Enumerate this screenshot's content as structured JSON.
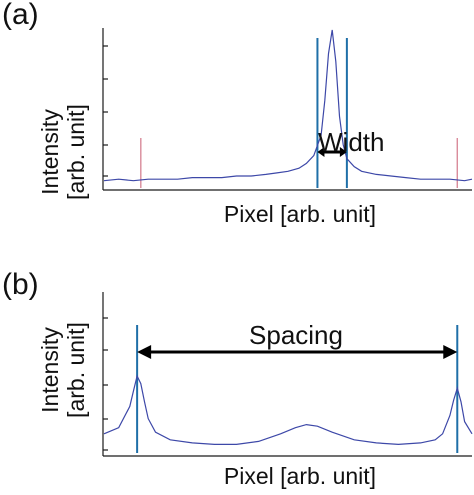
{
  "chart_data": [
    {
      "type": "line",
      "panel_label": "(a)",
      "ylabel_line1": "Intensity",
      "ylabel_line2": "[arb. unit]",
      "xlabel": "Pixel [arb. unit]",
      "annotation": "Width",
      "x": [
        0,
        0.04,
        0.08,
        0.12,
        0.16,
        0.2,
        0.24,
        0.28,
        0.32,
        0.36,
        0.4,
        0.44,
        0.47,
        0.5,
        0.53,
        0.55,
        0.57,
        0.59,
        0.6,
        0.61,
        0.62,
        0.63,
        0.64,
        0.65,
        0.66,
        0.68,
        0.7,
        0.74,
        0.78,
        0.82,
        0.86,
        0.9,
        0.94,
        0.98,
        1
      ],
      "y": [
        0.04,
        0.05,
        0.04,
        0.05,
        0.05,
        0.05,
        0.06,
        0.06,
        0.06,
        0.07,
        0.07,
        0.08,
        0.09,
        0.1,
        0.12,
        0.15,
        0.2,
        0.33,
        0.55,
        0.85,
        1.0,
        0.8,
        0.45,
        0.27,
        0.18,
        0.13,
        0.1,
        0.08,
        0.07,
        0.06,
        0.05,
        0.05,
        0.05,
        0.04,
        0.05
      ],
      "blue_markers_x": [
        0.58,
        0.66
      ],
      "red_markers_x": [
        0.1,
        0.96
      ]
    },
    {
      "type": "line",
      "panel_label": "(b)",
      "ylabel_line1": "Intensity",
      "ylabel_line2": "[arb. unit]",
      "xlabel": "Pixel [arb. unit]",
      "annotation": "Spacing",
      "x": [
        0,
        0.04,
        0.07,
        0.08,
        0.09,
        0.1,
        0.11,
        0.12,
        0.14,
        0.18,
        0.24,
        0.3,
        0.36,
        0.42,
        0.48,
        0.52,
        0.55,
        0.58,
        0.62,
        0.68,
        0.74,
        0.8,
        0.86,
        0.9,
        0.92,
        0.94,
        0.95,
        0.96,
        0.97,
        0.98,
        1
      ],
      "y": [
        0.12,
        0.16,
        0.3,
        0.4,
        0.5,
        0.45,
        0.33,
        0.22,
        0.13,
        0.08,
        0.06,
        0.05,
        0.05,
        0.07,
        0.12,
        0.16,
        0.18,
        0.17,
        0.13,
        0.08,
        0.06,
        0.05,
        0.06,
        0.08,
        0.12,
        0.24,
        0.34,
        0.42,
        0.33,
        0.2,
        0.12
      ],
      "blue_markers_x": [
        0.09,
        0.96
      ]
    }
  ]
}
